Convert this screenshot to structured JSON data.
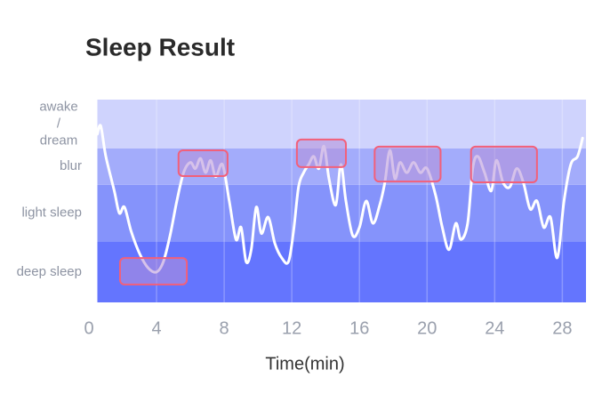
{
  "chart_data": {
    "type": "line",
    "title": "Sleep Result",
    "xlabel": "Time(min)",
    "xlim": [
      0,
      29.4
    ],
    "xticks": [
      0,
      4,
      8,
      12,
      16,
      20,
      24,
      28
    ],
    "ylim": [
      0,
      100
    ],
    "grid": true,
    "bands": [
      {
        "label": [
          "deep sleep"
        ],
        "from": 0,
        "to": 30,
        "color": "#6475fe"
      },
      {
        "label": [
          "light sleep"
        ],
        "from": 30,
        "to": 58,
        "color": "#8593fb"
      },
      {
        "label": [
          "blur"
        ],
        "from": 58,
        "to": 76,
        "color": "#a3acfb"
      },
      {
        "label": [
          "awake",
          "/",
          "dream"
        ],
        "from": 76,
        "to": 100,
        "color": "#cfd3fd"
      }
    ],
    "series": [
      {
        "color": "#ffffff",
        "x": [
          0.5,
          0.7,
          1.0,
          1.5,
          1.8,
          2.1,
          2.5,
          3.0,
          3.5,
          4.0,
          4.4,
          4.8,
          5.2,
          5.6,
          6.0,
          6.3,
          6.6,
          6.9,
          7.2,
          7.5,
          7.9,
          8.3,
          8.7,
          9.0,
          9.3,
          9.6,
          9.9,
          10.2,
          10.6,
          11.0,
          11.4,
          11.8,
          12.1,
          12.4,
          12.7,
          13.0,
          13.3,
          13.6,
          13.9,
          14.2,
          14.6,
          14.9,
          15.2,
          15.6,
          16.0,
          16.4,
          16.8,
          17.2,
          17.5,
          17.8,
          18.1,
          18.4,
          18.8,
          19.2,
          19.6,
          20.0,
          20.5,
          20.9,
          21.3,
          21.7,
          22.0,
          22.4,
          22.7,
          23.0,
          23.4,
          23.8,
          24.1,
          24.5,
          24.9,
          25.3,
          25.7,
          26.1,
          26.5,
          26.9,
          27.3,
          27.7,
          28.1,
          28.5,
          28.9,
          29.2
        ],
        "values": [
          83,
          87,
          72,
          55,
          44,
          47,
          35,
          24,
          17,
          15,
          20,
          33,
          50,
          64,
          69,
          66,
          71,
          64,
          70,
          62,
          68,
          50,
          31,
          37,
          20,
          26,
          47,
          34,
          42,
          29,
          22,
          20,
          35,
          57,
          64,
          68,
          72,
          66,
          77,
          61,
          48,
          68,
          50,
          33,
          37,
          50,
          39,
          48,
          59,
          75,
          61,
          69,
          64,
          69,
          64,
          66,
          53,
          37,
          26,
          39,
          31,
          39,
          66,
          72,
          64,
          55,
          70,
          59,
          57,
          66,
          59,
          46,
          50,
          37,
          42,
          22,
          50,
          68,
          72,
          81
        ]
      }
    ],
    "highlights": [
      {
        "x0": 1.84,
        "x1": 5.79,
        "y0": 8.8,
        "y1": 21.9
      },
      {
        "x0": 5.3,
        "x1": 8.2,
        "y0": 62.3,
        "y1": 75
      },
      {
        "x0": 12.3,
        "x1": 15.2,
        "y0": 66.7,
        "y1": 80.3
      },
      {
        "x0": 16.9,
        "x1": 20.8,
        "y0": 59.6,
        "y1": 76.8
      },
      {
        "x0": 22.6,
        "x1": 26.5,
        "y0": 59.2,
        "y1": 76.8
      }
    ]
  }
}
